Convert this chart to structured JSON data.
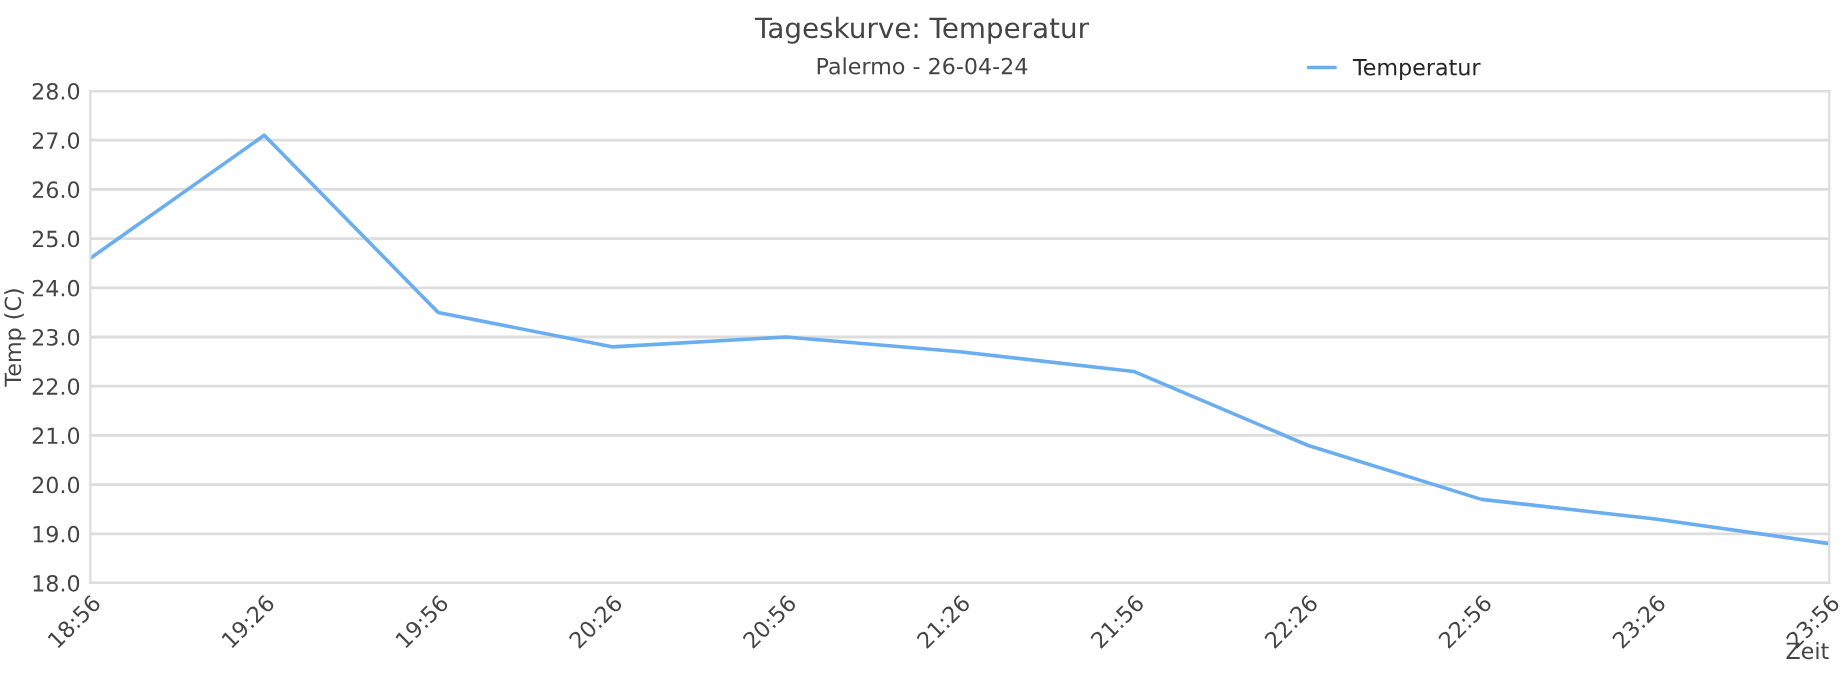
{
  "chart_data": {
    "type": "line",
    "title": "Tageskurve: Temperatur",
    "subtitle": "Palermo - 26-04-24",
    "xlabel": "Zeit",
    "ylabel": "Temp (C)",
    "x": [
      18.9333,
      19.4333,
      19.9333,
      20.4333,
      20.9333,
      21.4333,
      21.9333,
      22.4333,
      22.9333,
      23.4333,
      23.9333
    ],
    "series": [
      {
        "name": "Temperatur",
        "color": "#6aaef0",
        "values": [
          24.6,
          27.1,
          23.5,
          22.8,
          23.0,
          22.7,
          22.3,
          20.8,
          19.7,
          19.3,
          18.8
        ]
      }
    ],
    "xlim": [
      18.9333,
      23.9333
    ],
    "xticks": [
      {
        "value": 18.9333,
        "label": "18:56"
      },
      {
        "value": 19.4333,
        "label": "19:26"
      },
      {
        "value": 19.9333,
        "label": "19:56"
      },
      {
        "value": 20.4333,
        "label": "20:26"
      },
      {
        "value": 20.9333,
        "label": "20:56"
      },
      {
        "value": 21.4333,
        "label": "21:26"
      },
      {
        "value": 21.9333,
        "label": "21:56"
      },
      {
        "value": 22.4333,
        "label": "22:26"
      },
      {
        "value": 22.9333,
        "label": "22:56"
      },
      {
        "value": 23.4333,
        "label": "23:26"
      },
      {
        "value": 23.9333,
        "label": "23:56"
      }
    ],
    "ylim": [
      18.0,
      28.0
    ],
    "yticks": [
      {
        "value": 18,
        "label": "18.0"
      },
      {
        "value": 19,
        "label": "19.0"
      },
      {
        "value": 20,
        "label": "20.0"
      },
      {
        "value": 21,
        "label": "21.0"
      },
      {
        "value": 22,
        "label": "22.0"
      },
      {
        "value": 23,
        "label": "23.0"
      },
      {
        "value": 24,
        "label": "24.0"
      },
      {
        "value": 25,
        "label": "25.0"
      },
      {
        "value": 26,
        "label": "26.0"
      },
      {
        "value": 27,
        "label": "27.0"
      },
      {
        "value": 28,
        "label": "28.0"
      }
    ],
    "grid": "y",
    "legend": "top",
    "marker": "none",
    "line_style": "solid"
  }
}
